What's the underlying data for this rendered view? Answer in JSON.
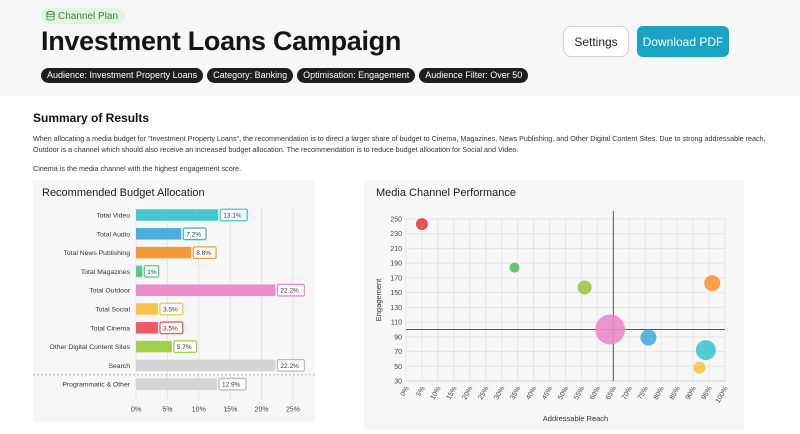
{
  "header": {
    "plan_label": "Channel Plan",
    "title": "Investment Loans Campaign",
    "settings_label": "Settings",
    "download_label": "Download PDF",
    "tags": [
      "Audience: Investment Property Loans",
      "Category: Banking",
      "Optimisation: Engagement",
      "Audience Filter: Over 50"
    ]
  },
  "summary": {
    "heading": "Summary of Results",
    "paragraph": "When allocating a media budget for \"Investment Property Loans\", the recommendation is to direct a larger share of budget to Cinema, Magazines, News Publishing, and Other Digital Content Sites. Due to strong addressable reach, Outdoor is a channel which should also receive an increased budget allocation. The recommendation is to reduce budget allocation for Social and Video.",
    "note": "Cinema is the media channel with the highest engagement score."
  },
  "colors": {
    "accent": "#1aa3c4",
    "tag_bg": "#1e1e1e",
    "pill_bg": "#e2f3e3",
    "pill_text": "#2f8a3a"
  },
  "chart_data": [
    {
      "type": "bar",
      "title": "Recommended Budget Allocation",
      "categories": [
        "Total Video",
        "Total Audio",
        "Total News Publishing",
        "Total Magazines",
        "Total Outdoor",
        "Total Social",
        "Total Cinema",
        "Other Digital Content Sites",
        "Search",
        "Programmatic & Other"
      ],
      "values": [
        13.1,
        7.2,
        8.8,
        1,
        22.2,
        3.5,
        3.5,
        5.7,
        22.2,
        12.9
      ],
      "labels": [
        "13.1%",
        "7.2%",
        "8.8%",
        "1%",
        "22.2%",
        "3.5%",
        "3.5%",
        "5.7%",
        "22.2%",
        "12.9%"
      ],
      "colors": [
        "#48c6cf",
        "#4aaede",
        "#f59a3b",
        "#58c98a",
        "#ea8cc9",
        "#f4c54a",
        "#ee5a63",
        "#a2cf48",
        "#d5d5d5",
        "#d5d5d5"
      ],
      "xticks": [
        "0%",
        "5%",
        "10%",
        "15%",
        "20%",
        "25%"
      ],
      "xlim": [
        0,
        25
      ],
      "grid": true,
      "orientation": "horizontal"
    },
    {
      "type": "scatter",
      "title": "Media Channel Performance",
      "xlabel": "Addressable Reach",
      "ylabel": "Engagement",
      "xticks": [
        "0%",
        "5%",
        "10%",
        "15%",
        "20%",
        "25%",
        "30%",
        "35%",
        "40%",
        "45%",
        "50%",
        "55%",
        "60%",
        "65%",
        "70%",
        "75%",
        "80%",
        "85%",
        "90%",
        "95%",
        "100%"
      ],
      "yticks": [
        30,
        50,
        70,
        90,
        110,
        130,
        150,
        170,
        190,
        210,
        230,
        250
      ],
      "xlim": [
        0,
        100
      ],
      "ylim": [
        30,
        250
      ],
      "grid": true,
      "reference_lines": {
        "x": 65,
        "y": 100
      },
      "points": [
        {
          "x": 5,
          "y": 243,
          "size": 6,
          "color": "#e0454f"
        },
        {
          "x": 34,
          "y": 184,
          "size": 5,
          "color": "#5cbf72"
        },
        {
          "x": 56,
          "y": 157,
          "size": 7,
          "color": "#a6c446"
        },
        {
          "x": 64,
          "y": 100,
          "size": 15,
          "color": "#ea8cc9"
        },
        {
          "x": 76,
          "y": 89,
          "size": 8,
          "color": "#4aaede"
        },
        {
          "x": 96,
          "y": 163,
          "size": 8,
          "color": "#f59a3b"
        },
        {
          "x": 94,
          "y": 72,
          "size": 10,
          "color": "#48c6cf"
        },
        {
          "x": 92,
          "y": 48,
          "size": 6,
          "color": "#f4c54a"
        }
      ]
    }
  ]
}
